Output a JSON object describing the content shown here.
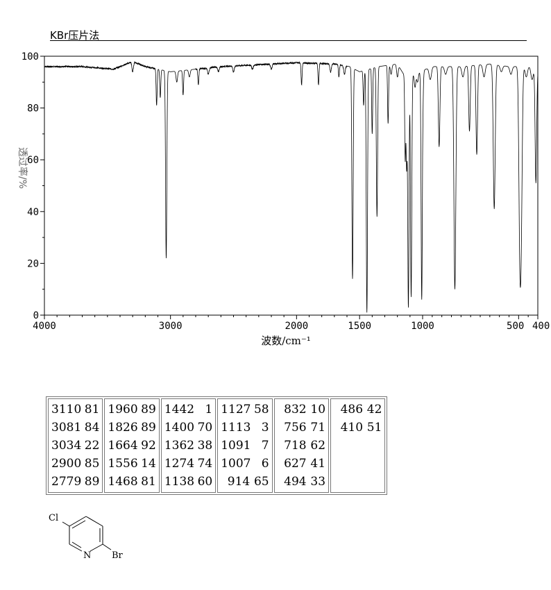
{
  "method": "KBr压片法",
  "chart_data": {
    "type": "line",
    "xlabel": "波数/cm⁻¹",
    "ylabel": "透过率/%",
    "xlim": [
      4000,
      400
    ],
    "ylim": [
      0,
      100
    ],
    "x_ticks": [
      "4000",
      "3000",
      "2000",
      "1500",
      "1000",
      "500",
      "400"
    ],
    "y_ticks": [
      "0",
      "20",
      "40",
      "60",
      "80",
      "100"
    ],
    "grid": false,
    "baseline": [
      [
        4000,
        96
      ],
      [
        3700,
        96
      ],
      [
        3450,
        95
      ],
      [
        3400,
        96
      ],
      [
        3300,
        98
      ],
      [
        3200,
        96
      ],
      [
        3000,
        94
      ],
      [
        2800,
        95
      ],
      [
        2600,
        96
      ],
      [
        2400,
        96.5
      ],
      [
        2000,
        97.5
      ],
      [
        1700,
        97
      ],
      [
        1580,
        96
      ],
      [
        1500,
        94
      ],
      [
        1350,
        96
      ],
      [
        1200,
        97
      ],
      [
        1150,
        93
      ],
      [
        1050,
        93
      ],
      [
        950,
        96
      ],
      [
        800,
        96
      ],
      [
        650,
        97
      ],
      [
        550,
        96
      ],
      [
        480,
        96
      ],
      [
        440,
        96
      ],
      [
        400,
        95
      ]
    ],
    "peaks": [
      {
        "x": 3110,
        "y": 81
      },
      {
        "x": 3081,
        "y": 84
      },
      {
        "x": 3034,
        "y": 22
      },
      {
        "x": 2900,
        "y": 85
      },
      {
        "x": 2779,
        "y": 89
      },
      {
        "x": 1960,
        "y": 89
      },
      {
        "x": 1826,
        "y": 89
      },
      {
        "x": 1664,
        "y": 92
      },
      {
        "x": 1556,
        "y": 14
      },
      {
        "x": 1468,
        "y": 81
      },
      {
        "x": 1442,
        "y": 1
      },
      {
        "x": 1400,
        "y": 70
      },
      {
        "x": 1362,
        "y": 38
      },
      {
        "x": 1274,
        "y": 74
      },
      {
        "x": 1138,
        "y": 60
      },
      {
        "x": 1127,
        "y": 58
      },
      {
        "x": 1113,
        "y": 3
      },
      {
        "x": 1091,
        "y": 7
      },
      {
        "x": 1007,
        "y": 6
      },
      {
        "x": 914,
        "y": 65
      },
      {
        "x": 832,
        "y": 10
      },
      {
        "x": 756,
        "y": 71
      },
      {
        "x": 718,
        "y": 62
      },
      {
        "x": 627,
        "y": 41
      },
      {
        "x": 494,
        "y": 33
      },
      {
        "x": 486,
        "y": 42
      },
      {
        "x": 410,
        "y": 51
      }
    ],
    "minor_features": [
      {
        "x": 3300,
        "y": 94
      },
      {
        "x": 2950,
        "y": 90
      },
      {
        "x": 2850,
        "y": 92
      },
      {
        "x": 2700,
        "y": 93
      },
      {
        "x": 2620,
        "y": 94
      },
      {
        "x": 2500,
        "y": 94
      },
      {
        "x": 2350,
        "y": 95
      },
      {
        "x": 2200,
        "y": 95
      },
      {
        "x": 1730,
        "y": 94
      },
      {
        "x": 1620,
        "y": 93
      },
      {
        "x": 1250,
        "y": 93
      },
      {
        "x": 1200,
        "y": 92
      },
      {
        "x": 1060,
        "y": 88
      },
      {
        "x": 1040,
        "y": 90
      },
      {
        "x": 960,
        "y": 91
      },
      {
        "x": 880,
        "y": 93
      },
      {
        "x": 790,
        "y": 92
      },
      {
        "x": 680,
        "y": 92
      },
      {
        "x": 590,
        "y": 94
      },
      {
        "x": 540,
        "y": 93
      },
      {
        "x": 460,
        "y": 92
      },
      {
        "x": 430,
        "y": 91
      }
    ]
  },
  "peak_table": {
    "columns": [
      [
        [
          "3110",
          "81"
        ],
        [
          "3081",
          "84"
        ],
        [
          "3034",
          "22"
        ],
        [
          "2900",
          "85"
        ],
        [
          "2779",
          "89"
        ]
      ],
      [
        [
          "1960",
          "89"
        ],
        [
          "1826",
          "89"
        ],
        [
          "1664",
          "92"
        ],
        [
          "1556",
          "14"
        ],
        [
          "1468",
          "81"
        ]
      ],
      [
        [
          "1442",
          "1"
        ],
        [
          "1400",
          "70"
        ],
        [
          "1362",
          "38"
        ],
        [
          "1274",
          "74"
        ],
        [
          "1138",
          "60"
        ]
      ],
      [
        [
          "1127",
          "58"
        ],
        [
          "1113",
          "3"
        ],
        [
          "1091",
          "7"
        ],
        [
          "1007",
          "6"
        ],
        [
          "914",
          "65"
        ]
      ],
      [
        [
          "832",
          "10"
        ],
        [
          "756",
          "71"
        ],
        [
          "718",
          "62"
        ],
        [
          "627",
          "41"
        ],
        [
          "494",
          "33"
        ]
      ],
      [
        [
          "486",
          "42"
        ],
        [
          "410",
          "51"
        ]
      ]
    ]
  },
  "structure": {
    "atom_cl": "Cl",
    "atom_n": "N",
    "atom_br": "Br"
  }
}
